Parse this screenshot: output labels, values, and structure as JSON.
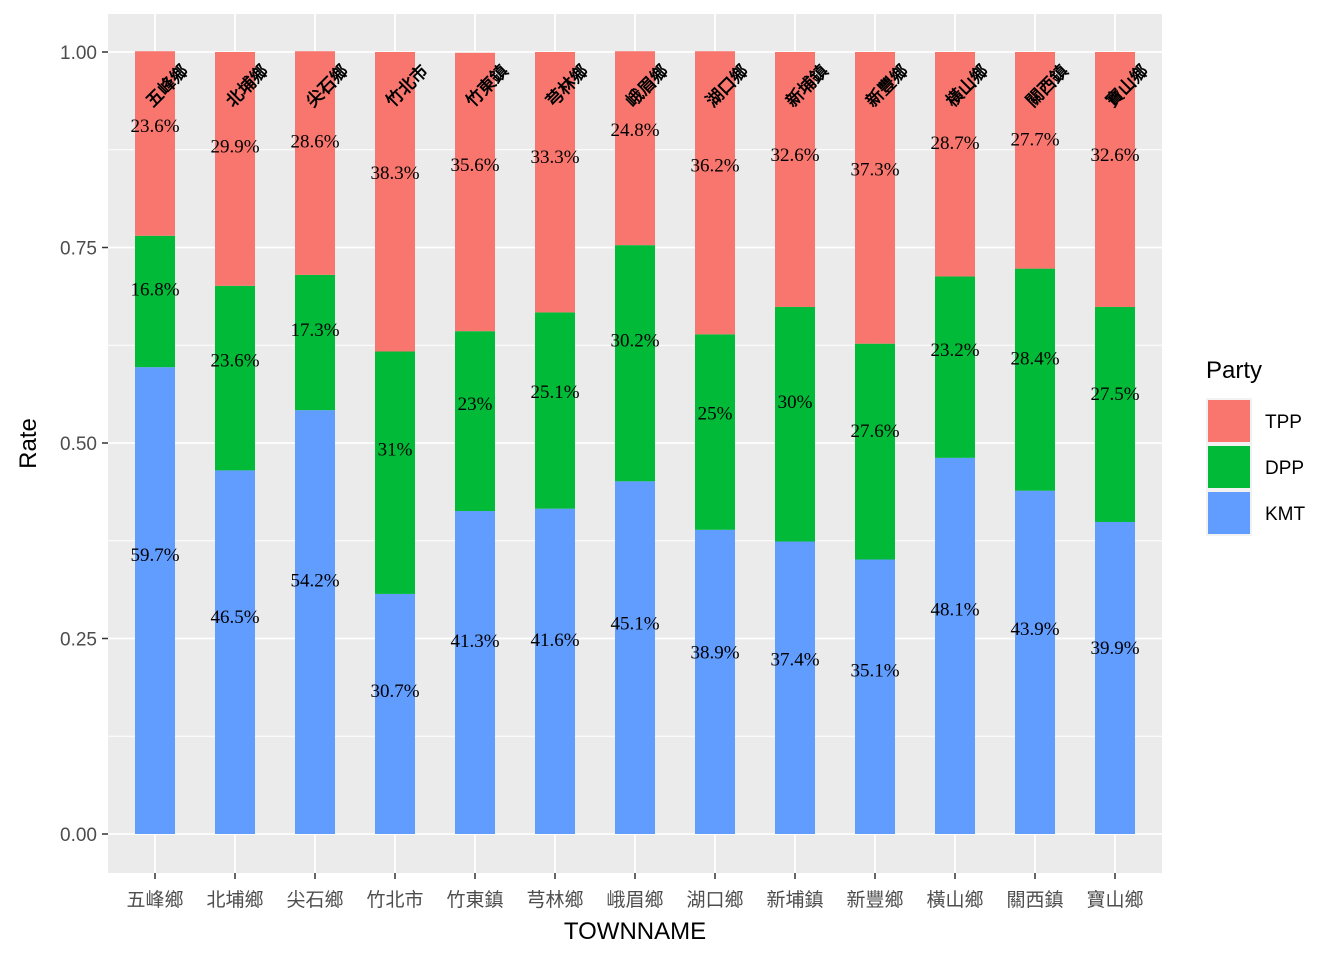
{
  "chart_data": {
    "type": "bar",
    "stacked": true,
    "xlabel": "TOWNNAME",
    "ylabel": "Rate",
    "ylim": [
      0,
      1
    ],
    "yticks": [
      "0.00",
      "0.25",
      "0.50",
      "0.75",
      "1.00"
    ],
    "ytick_values": [
      0,
      0.25,
      0.5,
      0.75,
      1.0
    ],
    "categories": [
      "五峰鄉",
      "北埔鄉",
      "尖石鄉",
      "竹北市",
      "竹東鎮",
      "芎林鄉",
      "峨眉鄉",
      "湖口鄉",
      "新埔鎮",
      "新豐鄉",
      "橫山鄉",
      "關西鎮",
      "寶山鄉"
    ],
    "series": [
      {
        "name": "KMT",
        "color": "#619CFF",
        "values": [
          0.597,
          0.465,
          0.542,
          0.307,
          0.413,
          0.416,
          0.451,
          0.389,
          0.374,
          0.351,
          0.481,
          0.439,
          0.399
        ],
        "labels": [
          "59.7%",
          "46.5%",
          "54.2%",
          "30.7%",
          "41.3%",
          "41.6%",
          "45.1%",
          "38.9%",
          "37.4%",
          "35.1%",
          "48.1%",
          "43.9%",
          "39.9%"
        ]
      },
      {
        "name": "DPP",
        "color": "#00BA38",
        "values": [
          0.168,
          0.236,
          0.173,
          0.31,
          0.23,
          0.251,
          0.302,
          0.25,
          0.3,
          0.276,
          0.232,
          0.284,
          0.275
        ],
        "labels": [
          "16.8%",
          "23.6%",
          "17.3%",
          "31%",
          "23%",
          "25.1%",
          "30.2%",
          "25%",
          "30%",
          "27.6%",
          "23.2%",
          "28.4%",
          "27.5%"
        ]
      },
      {
        "name": "TPP",
        "color": "#F8766D",
        "values": [
          0.236,
          0.299,
          0.286,
          0.383,
          0.356,
          0.333,
          0.248,
          0.362,
          0.326,
          0.373,
          0.287,
          0.277,
          0.326
        ],
        "labels": [
          "23.6%",
          "29.9%",
          "28.6%",
          "38.3%",
          "35.6%",
          "33.3%",
          "24.8%",
          "36.2%",
          "32.6%",
          "37.3%",
          "28.7%",
          "27.7%",
          "32.6%"
        ]
      }
    ],
    "legend": {
      "title": "Party",
      "placement": "right",
      "order": [
        "TPP",
        "DPP",
        "KMT"
      ]
    },
    "grid": true,
    "panel_color": "#EBEBEB"
  }
}
